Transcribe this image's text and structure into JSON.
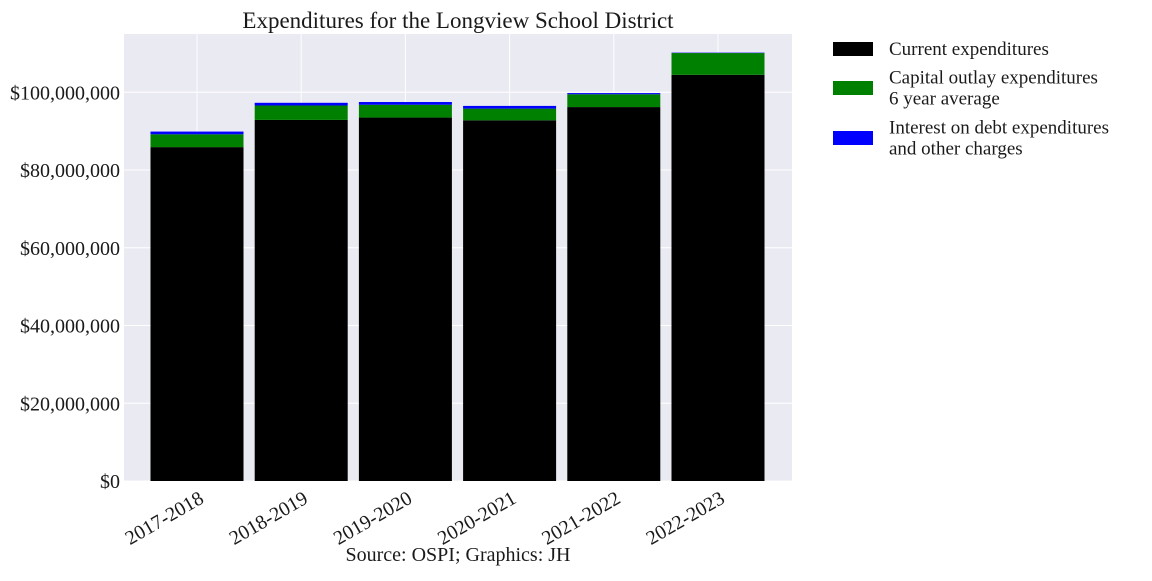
{
  "chart_data": {
    "type": "bar",
    "stacked": true,
    "title": "Expenditures for the Longview School District",
    "caption": "Source: OSPI; Graphics: JH",
    "xlabel": "",
    "ylabel": "",
    "categories": [
      "2017-2018",
      "2018-2019",
      "2019-2020",
      "2020-2021",
      "2021-2022",
      "2022-2023"
    ],
    "series": [
      {
        "name": "Current expenditures",
        "color": "#000000",
        "values": [
          85900000,
          92900000,
          93500000,
          92800000,
          96200000,
          104500000
        ]
      },
      {
        "name": "Capital outlay expenditures\n6 year average",
        "color": "#008000",
        "values": [
          3300000,
          3700000,
          3300000,
          3000000,
          3300000,
          5600000
        ]
      },
      {
        "name": "Interest on debt expenditures\nand other charges",
        "color": "#0000ff",
        "values": [
          700000,
          700000,
          700000,
          700000,
          300000,
          100000
        ]
      }
    ],
    "yticks": [
      0,
      20000000,
      40000000,
      60000000,
      80000000,
      100000000
    ],
    "ytick_labels": [
      "$0",
      "$20,000,000",
      "$40,000,000",
      "$60,000,000",
      "$80,000,000",
      "$100,000,000"
    ],
    "ylim": [
      0,
      115000000
    ],
    "grid": true,
    "legend_position": "outside-right"
  }
}
